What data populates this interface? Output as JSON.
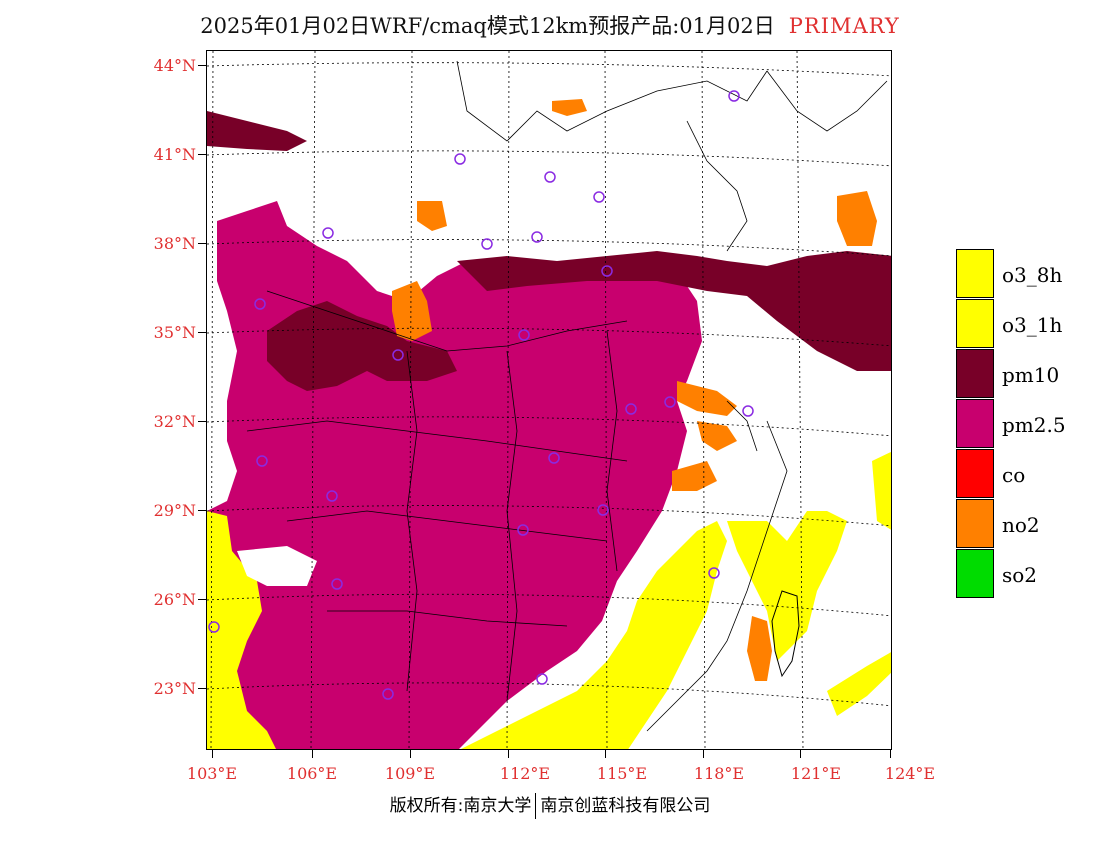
{
  "header": {
    "title": "2025年01月02日WRF/cmaq模式12km预报产品:01月02日",
    "tag": "PRIMARY"
  },
  "colors": {
    "o3_8h": "#ffff00",
    "o3_1h": "#ffff00",
    "pm10": "#780028",
    "pm2_5": "#c8006e",
    "co": "#ff0000",
    "no2": "#ff8000",
    "so2": "#00dc00",
    "axis_label": "#e03030",
    "site_marker": "#8a2be2"
  },
  "axes": {
    "lat_labels": [
      "44°N",
      "41°N",
      "38°N",
      "35°N",
      "32°N",
      "29°N",
      "26°N",
      "23°N"
    ],
    "lon_labels": [
      "103°E",
      "106°E",
      "109°E",
      "112°E",
      "115°E",
      "118°E",
      "121°E",
      "124°E"
    ]
  },
  "legend": [
    {
      "label": "o3_8h",
      "color": "#ffff00"
    },
    {
      "label": "o3_1h",
      "color": "#ffff00"
    },
    {
      "label": "pm10",
      "color": "#780028"
    },
    {
      "label": "pm2.5",
      "color": "#c8006e"
    },
    {
      "label": "co",
      "color": "#ff0000"
    },
    {
      "label": "no2",
      "color": "#ff8000"
    },
    {
      "label": "so2",
      "color": "#00dc00"
    }
  ],
  "footer": {
    "left": "版权所有:南京大学",
    "right": "南京创蓝科技有限公司"
  }
}
